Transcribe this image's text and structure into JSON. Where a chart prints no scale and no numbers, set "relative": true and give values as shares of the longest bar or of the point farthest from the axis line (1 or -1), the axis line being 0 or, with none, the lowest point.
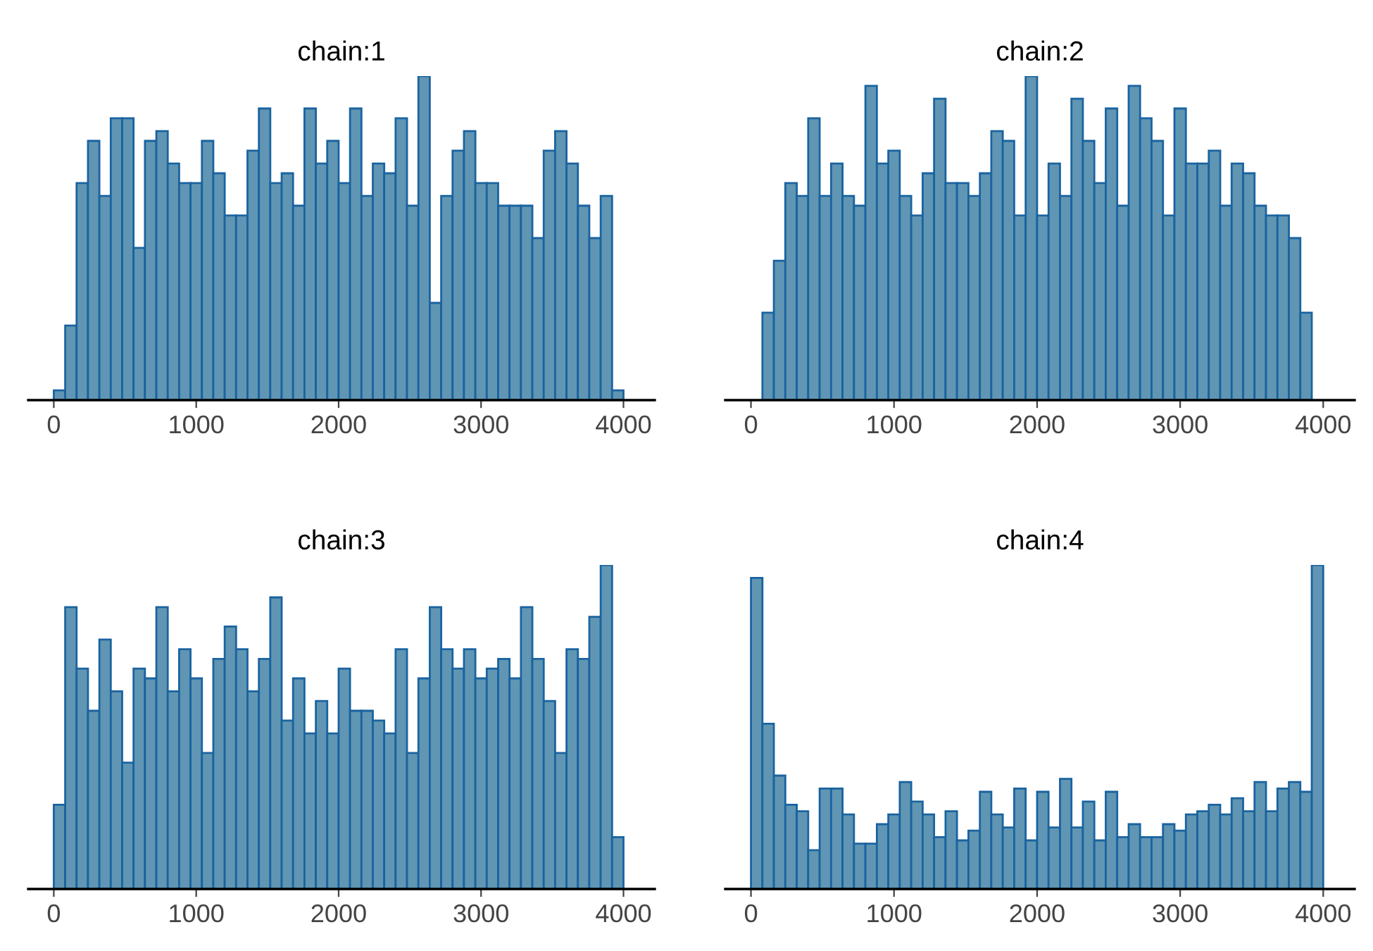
{
  "chart_data": [
    {
      "type": "bar",
      "title": "chain:1",
      "relative": true,
      "color": "#6096b3",
      "xlim": [
        -180,
        4220
      ],
      "xticks": [
        0,
        1000,
        2000,
        3000,
        4000
      ],
      "x": [
        40,
        120,
        200,
        280,
        360,
        440,
        520,
        600,
        680,
        760,
        840,
        920,
        1000,
        1080,
        1160,
        1240,
        1320,
        1400,
        1480,
        1560,
        1640,
        1720,
        1800,
        1880,
        1960,
        2040,
        2120,
        2200,
        2280,
        2360,
        2440,
        2520,
        2600,
        2680,
        2760,
        2840,
        2920,
        3000,
        3080,
        3160,
        3240,
        3320,
        3400,
        3480,
        3560,
        3640,
        3720,
        3800,
        3880,
        3960
      ],
      "values": [
        0.03,
        0.23,
        0.67,
        0.8,
        0.63,
        0.87,
        0.87,
        0.47,
        0.8,
        0.83,
        0.73,
        0.67,
        0.67,
        0.8,
        0.7,
        0.57,
        0.57,
        0.77,
        0.9,
        0.67,
        0.7,
        0.6,
        0.9,
        0.73,
        0.8,
        0.67,
        0.9,
        0.63,
        0.73,
        0.7,
        0.87,
        0.6,
        1,
        0.3,
        0.63,
        0.77,
        0.83,
        0.67,
        0.67,
        0.6,
        0.6,
        0.6,
        0.5,
        0.77,
        0.83,
        0.73,
        0.6,
        0.5,
        0.63,
        0.03
      ]
    },
    {
      "type": "bar",
      "title": "chain:2",
      "relative": true,
      "color": "#6096b3",
      "xlim": [
        -180,
        4220
      ],
      "xticks": [
        0,
        1000,
        2000,
        3000,
        4000
      ],
      "x": [
        40,
        120,
        200,
        280,
        360,
        440,
        520,
        600,
        680,
        760,
        840,
        920,
        1000,
        1080,
        1160,
        1240,
        1320,
        1400,
        1480,
        1560,
        1640,
        1720,
        1800,
        1880,
        1960,
        2040,
        2120,
        2200,
        2280,
        2360,
        2440,
        2520,
        2600,
        2680,
        2760,
        2840,
        2920,
        3000,
        3080,
        3160,
        3240,
        3320,
        3400,
        3480,
        3560,
        3640,
        3720,
        3800,
        3880,
        3960
      ],
      "values": [
        0,
        0.27,
        0.43,
        0.67,
        0.63,
        0.87,
        0.63,
        0.73,
        0.63,
        0.6,
        0.97,
        0.73,
        0.77,
        0.63,
        0.57,
        0.7,
        0.93,
        0.67,
        0.67,
        0.63,
        0.7,
        0.83,
        0.8,
        0.57,
        1,
        0.57,
        0.73,
        0.63,
        0.93,
        0.8,
        0.67,
        0.9,
        0.6,
        0.97,
        0.87,
        0.8,
        0.57,
        0.9,
        0.73,
        0.73,
        0.77,
        0.6,
        0.73,
        0.7,
        0.6,
        0.57,
        0.57,
        0.5,
        0.27,
        0
      ]
    },
    {
      "type": "bar",
      "title": "chain:3",
      "relative": true,
      "color": "#6096b3",
      "xlim": [
        -180,
        4220
      ],
      "xticks": [
        0,
        1000,
        2000,
        3000,
        4000
      ],
      "x": [
        40,
        120,
        200,
        280,
        360,
        440,
        520,
        600,
        680,
        760,
        840,
        920,
        1000,
        1080,
        1160,
        1240,
        1320,
        1400,
        1480,
        1560,
        1640,
        1720,
        1800,
        1880,
        1960,
        2040,
        2120,
        2200,
        2280,
        2360,
        2440,
        2520,
        2600,
        2680,
        2760,
        2840,
        2920,
        3000,
        3080,
        3160,
        3240,
        3320,
        3400,
        3480,
        3560,
        3640,
        3720,
        3800,
        3880,
        3960
      ],
      "values": [
        0.26,
        0.87,
        0.68,
        0.55,
        0.77,
        0.61,
        0.39,
        0.68,
        0.65,
        0.87,
        0.61,
        0.74,
        0.65,
        0.42,
        0.71,
        0.81,
        0.74,
        0.61,
        0.71,
        0.9,
        0.52,
        0.65,
        0.48,
        0.58,
        0.48,
        0.68,
        0.55,
        0.55,
        0.52,
        0.48,
        0.74,
        0.42,
        0.65,
        0.87,
        0.74,
        0.68,
        0.74,
        0.65,
        0.68,
        0.71,
        0.65,
        0.87,
        0.71,
        0.58,
        0.42,
        0.74,
        0.71,
        0.84,
        1,
        0.16
      ]
    },
    {
      "type": "bar",
      "title": "chain:4",
      "relative": true,
      "color": "#6096b3",
      "xlim": [
        -180,
        4220
      ],
      "xticks": [
        0,
        1000,
        2000,
        3000,
        4000
      ],
      "x": [
        40,
        120,
        200,
        280,
        360,
        440,
        520,
        600,
        680,
        760,
        840,
        920,
        1000,
        1080,
        1160,
        1240,
        1320,
        1400,
        1480,
        1560,
        1640,
        1720,
        1800,
        1880,
        1960,
        2040,
        2120,
        2200,
        2280,
        2360,
        2440,
        2520,
        2600,
        2680,
        2760,
        2840,
        2920,
        3000,
        3080,
        3160,
        3240,
        3320,
        3400,
        3480,
        3560,
        3640,
        3720,
        3800,
        3880,
        3960
      ],
      "values": [
        0.96,
        0.51,
        0.35,
        0.26,
        0.24,
        0.12,
        0.31,
        0.31,
        0.23,
        0.14,
        0.14,
        0.2,
        0.23,
        0.33,
        0.27,
        0.23,
        0.16,
        0.24,
        0.15,
        0.18,
        0.3,
        0.23,
        0.19,
        0.31,
        0.15,
        0.3,
        0.19,
        0.34,
        0.19,
        0.27,
        0.15,
        0.3,
        0.16,
        0.2,
        0.16,
        0.16,
        0.2,
        0.18,
        0.23,
        0.24,
        0.26,
        0.23,
        0.28,
        0.24,
        0.33,
        0.24,
        0.31,
        0.33,
        0.3,
        1
      ]
    }
  ]
}
